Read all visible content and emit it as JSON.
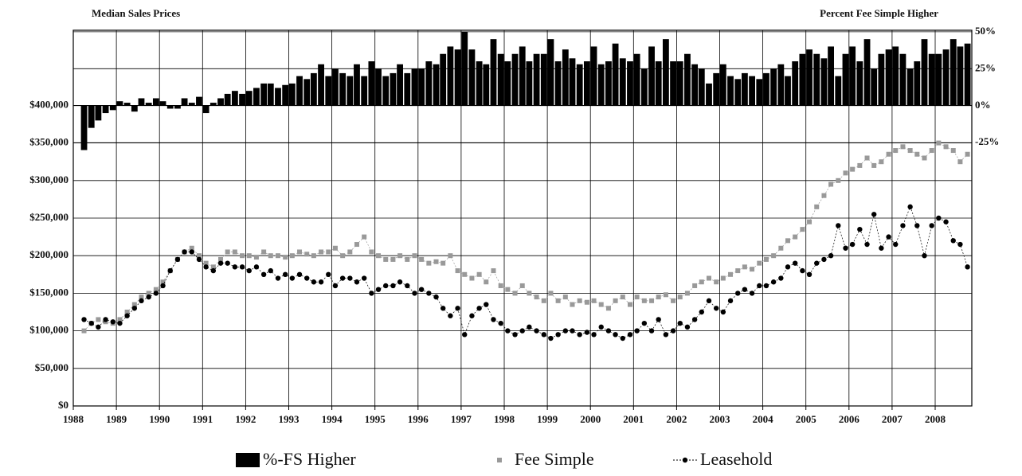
{
  "chart_data": {
    "type": "combo",
    "title": "Median Sales Prices",
    "y2label": "Percent Fee Simple Higher",
    "x": [
      1988.25,
      1988.42,
      1988.58,
      1988.75,
      1988.92,
      1989.08,
      1989.25,
      1989.42,
      1989.58,
      1989.75,
      1989.92,
      1990.08,
      1990.25,
      1990.42,
      1990.58,
      1990.75,
      1990.92,
      1991.08,
      1991.25,
      1991.42,
      1991.58,
      1991.75,
      1991.92,
      1992.08,
      1992.25,
      1992.42,
      1992.58,
      1992.75,
      1992.92,
      1993.08,
      1993.25,
      1993.42,
      1993.58,
      1993.75,
      1993.92,
      1994.08,
      1994.25,
      1994.42,
      1994.58,
      1994.75,
      1994.92,
      1995.08,
      1995.25,
      1995.42,
      1995.58,
      1995.75,
      1995.92,
      1996.08,
      1996.25,
      1996.42,
      1996.58,
      1996.75,
      1996.92,
      1997.08,
      1997.25,
      1997.42,
      1997.58,
      1997.75,
      1997.92,
      1998.08,
      1998.25,
      1998.42,
      1998.58,
      1998.75,
      1998.92,
      1999.08,
      1999.25,
      1999.42,
      1999.58,
      1999.75,
      1999.92,
      2000.08,
      2000.25,
      2000.42,
      2000.58,
      2000.75,
      2000.92,
      2001.08,
      2001.25,
      2001.42,
      2001.58,
      2001.75,
      2001.92,
      2002.08,
      2002.25,
      2002.42,
      2002.58,
      2002.75,
      2002.92,
      2003.08,
      2003.25,
      2003.42,
      2003.58,
      2003.75,
      2003.92,
      2004.08,
      2004.25,
      2004.42,
      2004.58,
      2004.75,
      2004.92,
      2005.08,
      2005.25,
      2005.42,
      2005.58,
      2005.75,
      2005.92,
      2006.08,
      2006.25,
      2006.42,
      2006.58,
      2006.75,
      2006.92,
      2007.08,
      2007.25,
      2007.42,
      2007.58,
      2007.75,
      2007.92,
      2008.08,
      2008.25,
      2008.42,
      2008.58,
      2008.75
    ],
    "xlim": [
      1988,
      2008.85
    ],
    "xticks": [
      1988,
      1989,
      1990,
      1991,
      1992,
      1993,
      1994,
      1995,
      1996,
      1997,
      1998,
      1999,
      2000,
      2001,
      2002,
      2003,
      2004,
      2005,
      2006,
      2007,
      2008
    ],
    "ylim": [
      0,
      500000
    ],
    "yticks": [
      {
        "value": 0,
        "label": "$0"
      },
      {
        "value": 50000,
        "label": "$50,000"
      },
      {
        "value": 100000,
        "label": "$100,000"
      },
      {
        "value": 150000,
        "label": "$150,000"
      },
      {
        "value": 200000,
        "label": "$200,000"
      },
      {
        "value": 250000,
        "label": "$250,000"
      },
      {
        "value": 300000,
        "label": "$300,000"
      },
      {
        "value": 350000,
        "label": "$350,000"
      },
      {
        "value": 400000,
        "label": "$400,000"
      }
    ],
    "y2lim": [
      -203,
      51
    ],
    "y2ticks": [
      {
        "value": -25,
        "label": "-25%"
      },
      {
        "value": 0,
        "label": "0%"
      },
      {
        "value": 25,
        "label": "25%"
      },
      {
        "value": 50,
        "label": "50%"
      }
    ],
    "grid": true,
    "series": [
      {
        "name": "%-FS Higher",
        "type": "bar",
        "axis": "y2",
        "color": "#000000",
        "values": [
          -30,
          -15,
          -10,
          -5,
          -3,
          3,
          2,
          -4,
          5,
          2,
          5,
          3,
          -2,
          -2,
          5,
          2,
          6,
          -5,
          2,
          5,
          8,
          10,
          8,
          10,
          12,
          15,
          15,
          12,
          14,
          15,
          20,
          18,
          22,
          28,
          20,
          25,
          22,
          20,
          28,
          20,
          30,
          25,
          20,
          22,
          28,
          22,
          25,
          25,
          30,
          28,
          35,
          40,
          38,
          50,
          38,
          30,
          28,
          45,
          35,
          30,
          35,
          40,
          30,
          35,
          35,
          45,
          30,
          38,
          32,
          28,
          30,
          40,
          28,
          30,
          42,
          32,
          30,
          35,
          25,
          40,
          30,
          45,
          30,
          30,
          35,
          28,
          25,
          15,
          22,
          28,
          20,
          18,
          22,
          20,
          18,
          22,
          25,
          28,
          20,
          30,
          35,
          38,
          35,
          32,
          40,
          20,
          35,
          40,
          30,
          45,
          25,
          35,
          38,
          40,
          35,
          25,
          30,
          45,
          35,
          35,
          38,
          45,
          40,
          42
        ]
      },
      {
        "name": "Fee Simple",
        "type": "scatter",
        "color": "#999999",
        "values": [
          100000,
          110000,
          115000,
          112000,
          110000,
          115000,
          125000,
          135000,
          145000,
          150000,
          155000,
          165000,
          180000,
          195000,
          205000,
          210000,
          200000,
          190000,
          185000,
          195000,
          205000,
          205000,
          200000,
          200000,
          198000,
          205000,
          200000,
          200000,
          198000,
          200000,
          205000,
          202000,
          200000,
          205000,
          205000,
          210000,
          200000,
          205000,
          215000,
          225000,
          205000,
          200000,
          195000,
          195000,
          200000,
          195000,
          200000,
          195000,
          190000,
          192000,
          190000,
          200000,
          180000,
          175000,
          170000,
          175000,
          165000,
          180000,
          160000,
          155000,
          150000,
          160000,
          150000,
          145000,
          140000,
          150000,
          140000,
          145000,
          135000,
          140000,
          138000,
          140000,
          135000,
          130000,
          140000,
          145000,
          135000,
          145000,
          140000,
          140000,
          145000,
          148000,
          140000,
          145000,
          150000,
          160000,
          165000,
          170000,
          165000,
          170000,
          175000,
          180000,
          185000,
          182000,
          190000,
          195000,
          200000,
          210000,
          220000,
          225000,
          235000,
          245000,
          265000,
          280000,
          295000,
          300000,
          310000,
          315000,
          320000,
          330000,
          320000,
          325000,
          335000,
          340000,
          345000,
          340000,
          335000,
          330000,
          340000,
          350000,
          345000,
          340000,
          325000,
          335000
        ]
      },
      {
        "name": "Leasehold",
        "type": "line",
        "color": "#000000",
        "values": [
          115000,
          110000,
          105000,
          115000,
          112000,
          110000,
          120000,
          130000,
          140000,
          145000,
          150000,
          160000,
          180000,
          195000,
          205000,
          205000,
          195000,
          185000,
          180000,
          190000,
          190000,
          185000,
          185000,
          180000,
          185000,
          175000,
          180000,
          170000,
          175000,
          170000,
          175000,
          170000,
          165000,
          165000,
          175000,
          160000,
          170000,
          170000,
          165000,
          170000,
          150000,
          155000,
          160000,
          160000,
          165000,
          160000,
          150000,
          155000,
          150000,
          145000,
          130000,
          120000,
          130000,
          95000,
          120000,
          130000,
          135000,
          115000,
          110000,
          100000,
          95000,
          100000,
          105000,
          100000,
          95000,
          90000,
          95000,
          100000,
          100000,
          95000,
          98000,
          95000,
          105000,
          100000,
          95000,
          90000,
          95000,
          100000,
          110000,
          100000,
          115000,
          95000,
          100000,
          110000,
          105000,
          115000,
          125000,
          140000,
          130000,
          125000,
          140000,
          150000,
          155000,
          150000,
          160000,
          160000,
          165000,
          170000,
          185000,
          190000,
          180000,
          175000,
          190000,
          195000,
          200000,
          240000,
          210000,
          215000,
          235000,
          215000,
          255000,
          210000,
          225000,
          215000,
          240000,
          265000,
          240000,
          200000,
          240000,
          250000,
          245000,
          220000,
          215000,
          185000
        ]
      }
    ]
  }
}
